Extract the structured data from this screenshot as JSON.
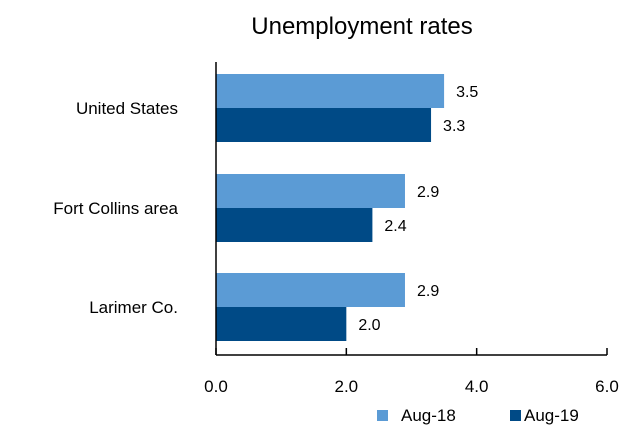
{
  "chart_data": {
    "type": "bar",
    "orientation": "horizontal",
    "title": "Unemployment rates",
    "xlabel": "",
    "ylabel": "",
    "categories": [
      "United States",
      "Fort Collins area",
      "Larimer Co."
    ],
    "series": [
      {
        "name": "Aug-18",
        "values": [
          3.5,
          2.9,
          2.9
        ],
        "color": "#5B9BD5"
      },
      {
        "name": "Aug-19",
        "values": [
          3.3,
          2.4,
          2.0
        ],
        "color": "#004A86"
      }
    ],
    "xlim": [
      0,
      6
    ],
    "xticks": [
      "0.0",
      "2.0",
      "4.0",
      "6.0"
    ],
    "grid": false,
    "legend_position": "bottom-right"
  }
}
